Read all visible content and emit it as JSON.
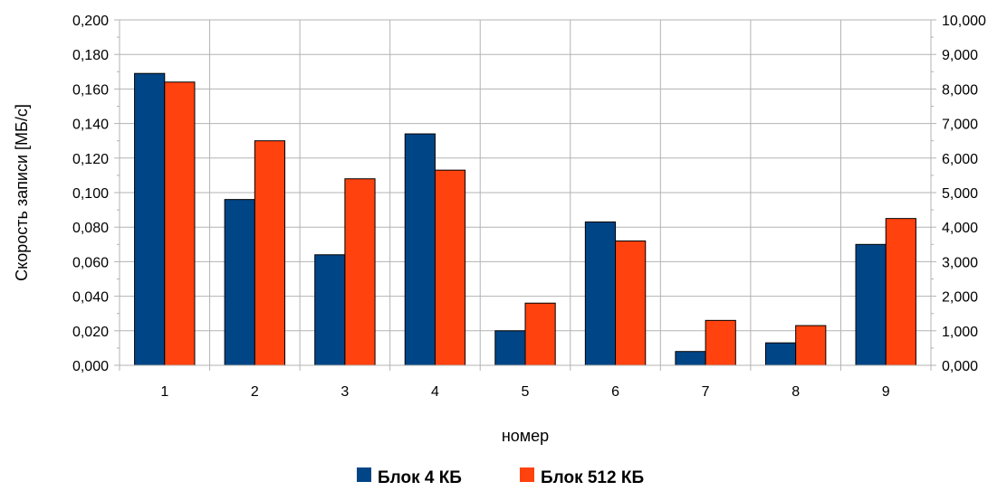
{
  "chart_data": {
    "type": "bar",
    "categories": [
      "1",
      "2",
      "3",
      "4",
      "5",
      "6",
      "7",
      "8",
      "9"
    ],
    "series": [
      {
        "name": "Блок 4 КБ",
        "color": "#004586",
        "values": [
          0.169,
          0.096,
          0.064,
          0.134,
          0.02,
          0.083,
          0.008,
          0.013,
          0.07
        ]
      },
      {
        "name": "Блок 512 КБ",
        "color": "#ff420e",
        "values": [
          0.164,
          0.13,
          0.108,
          0.113,
          0.036,
          0.072,
          0.026,
          0.023,
          0.085
        ]
      }
    ],
    "xlabel": "номер",
    "ylabel": "Скорость записи [МБ/с]",
    "ylim": [
      0,
      0.2
    ],
    "y_ticks": [
      "0,000",
      "0,020",
      "0,040",
      "0,060",
      "0,080",
      "0,100",
      "0,120",
      "0,140",
      "0,160",
      "0,180",
      "0,200"
    ],
    "y2lim": [
      0,
      10
    ],
    "y2_ticks": [
      "0,000",
      "1,000",
      "2,000",
      "3,000",
      "4,000",
      "5,000",
      "6,000",
      "7,000",
      "8,000",
      "9,000",
      "10,000"
    ],
    "grid": true,
    "legend_position": "bottom"
  }
}
